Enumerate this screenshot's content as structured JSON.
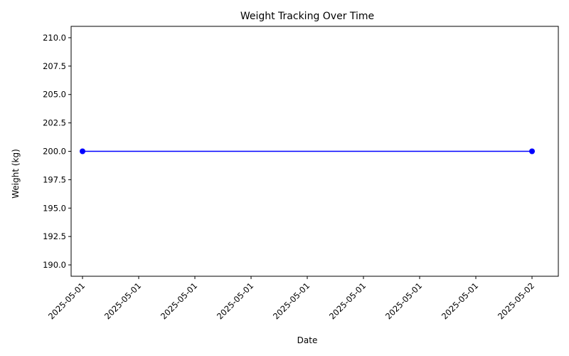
{
  "chart_data": {
    "type": "line",
    "title": "Weight Tracking Over Time",
    "xlabel": "Date",
    "ylabel": "Weight (kg)",
    "x_tick_labels": [
      "2025-05-01",
      "2025-05-01",
      "2025-05-01",
      "2025-05-01",
      "2025-05-01",
      "2025-05-01",
      "2025-05-01",
      "2025-05-01",
      "2025-05-02"
    ],
    "y_ticks": [
      190.0,
      192.5,
      195.0,
      197.5,
      200.0,
      202.5,
      205.0,
      207.5,
      210.0
    ],
    "y_tick_labels": [
      "190.0",
      "192.5",
      "195.0",
      "197.5",
      "200.0",
      "202.5",
      "205.0",
      "207.5",
      "210.0"
    ],
    "ylim": [
      189,
      211
    ],
    "grid": false,
    "series": [
      {
        "x": [
          "2025-05-01",
          "2025-05-02"
        ],
        "values": [
          200,
          200
        ],
        "color": "#0000ff",
        "marker": "circle"
      }
    ]
  }
}
